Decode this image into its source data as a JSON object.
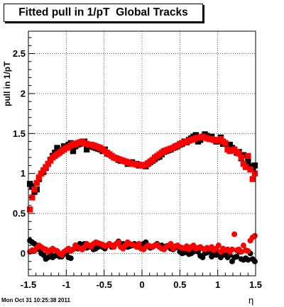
{
  "chart_data": {
    "type": "scatter",
    "title": "Fitted pull in 1/pT  Global Tracks",
    "xlabel": "η",
    "ylabel": "pull in 1/pT",
    "xlim": [
      -1.5,
      1.5
    ],
    "ylim": [
      -0.28,
      2.78
    ],
    "grid": true,
    "xticks": [
      -1.5,
      -1,
      -0.5,
      0,
      0.5,
      1,
      1.5
    ],
    "xtick_labels": [
      "-1.5",
      "-1",
      "-0.5",
      "0",
      "0.5",
      "1",
      "1.5"
    ],
    "yticks": [
      0,
      0.5,
      1,
      1.5,
      2,
      2.5
    ],
    "ytick_labels": [
      "0",
      "0.5",
      "1",
      "1.5",
      "2",
      "2.5"
    ],
    "datestamp": "Mon Oct 31 10:25:38 2011",
    "series": [
      {
        "color": "#000000",
        "marker": "square",
        "x": [
          -1.48,
          -1.45,
          -1.42,
          -1.39,
          -1.36,
          -1.33,
          -1.3,
          -1.27,
          -1.24,
          -1.21,
          -1.18,
          -1.15,
          -1.12,
          -1.09,
          -1.06,
          -1.03,
          -1.0,
          -0.97,
          -0.94,
          -0.91,
          -0.88,
          -0.85,
          -0.82,
          -0.79,
          -0.76,
          -0.73,
          -0.7,
          -0.67,
          -0.64,
          -0.61,
          -0.58,
          -0.55,
          -0.52,
          -0.49,
          -0.46,
          -0.43,
          -0.4,
          -0.37,
          -0.34,
          -0.31,
          -0.28,
          -0.25,
          -0.22,
          -0.19,
          -0.16,
          -0.13,
          -0.1,
          -0.07,
          -0.04,
          -0.01,
          0.02,
          0.05,
          0.08,
          0.11,
          0.14,
          0.17,
          0.2,
          0.23,
          0.26,
          0.29,
          0.32,
          0.35,
          0.38,
          0.41,
          0.44,
          0.47,
          0.5,
          0.53,
          0.56,
          0.59,
          0.62,
          0.65,
          0.68,
          0.71,
          0.74,
          0.77,
          0.8,
          0.83,
          0.86,
          0.89,
          0.92,
          0.95,
          0.98,
          1.01,
          1.04,
          1.07,
          1.1,
          1.13,
          1.16,
          1.19,
          1.22,
          1.25,
          1.28,
          1.31,
          1.34,
          1.37,
          1.4,
          1.43,
          1.46,
          1.49
        ],
        "y": [
          0.87,
          0.84,
          0.77,
          0.8,
          0.93,
          1.0,
          1.02,
          1.07,
          1.12,
          1.17,
          1.22,
          1.26,
          1.32,
          1.29,
          1.29,
          1.34,
          1.32,
          1.36,
          1.38,
          1.28,
          1.34,
          1.36,
          1.37,
          1.38,
          1.4,
          1.3,
          1.35,
          1.34,
          1.33,
          1.32,
          1.31,
          1.3,
          1.28,
          1.3,
          1.25,
          1.24,
          1.22,
          1.2,
          1.19,
          1.17,
          1.16,
          1.16,
          1.15,
          1.12,
          1.14,
          1.14,
          1.12,
          1.12,
          1.1,
          1.1,
          1.1,
          1.09,
          1.12,
          1.14,
          1.16,
          1.18,
          1.2,
          1.21,
          1.24,
          1.27,
          1.28,
          1.29,
          1.3,
          1.32,
          1.33,
          1.34,
          1.36,
          1.37,
          1.4,
          1.39,
          1.42,
          1.44,
          1.46,
          1.48,
          1.4,
          1.42,
          1.45,
          1.49,
          1.47,
          1.44,
          1.46,
          1.42,
          1.4,
          1.4,
          1.45,
          1.37,
          1.38,
          1.36,
          1.36,
          1.32,
          1.3,
          1.26,
          1.27,
          1.19,
          1.23,
          1.1,
          1.15,
          1.09,
          1.05,
          1.1
        ]
      },
      {
        "color": "#ff0000",
        "marker": "square",
        "x": [
          -1.48,
          -1.45,
          -1.42,
          -1.39,
          -1.36,
          -1.33,
          -1.3,
          -1.27,
          -1.24,
          -1.21,
          -1.18,
          -1.15,
          -1.12,
          -1.09,
          -1.06,
          -1.03,
          -1.0,
          -0.97,
          -0.94,
          -0.91,
          -0.88,
          -0.85,
          -0.82,
          -0.79,
          -0.76,
          -0.73,
          -0.7,
          -0.67,
          -0.64,
          -0.61,
          -0.58,
          -0.55,
          -0.52,
          -0.49,
          -0.46,
          -0.43,
          -0.4,
          -0.37,
          -0.34,
          -0.31,
          -0.28,
          -0.25,
          -0.22,
          -0.19,
          -0.16,
          -0.13,
          -0.1,
          -0.07,
          -0.04,
          -0.01,
          0.02,
          0.05,
          0.08,
          0.11,
          0.14,
          0.17,
          0.2,
          0.23,
          0.26,
          0.29,
          0.32,
          0.35,
          0.38,
          0.41,
          0.44,
          0.47,
          0.5,
          0.53,
          0.56,
          0.59,
          0.62,
          0.65,
          0.68,
          0.71,
          0.74,
          0.77,
          0.8,
          0.83,
          0.86,
          0.89,
          0.92,
          0.95,
          0.98,
          1.01,
          1.04,
          1.07,
          1.1,
          1.13,
          1.16,
          1.19,
          1.22,
          1.25,
          1.28,
          1.31,
          1.34,
          1.37,
          1.4,
          1.43,
          1.46,
          1.49
        ],
        "y": [
          0.55,
          0.7,
          0.8,
          0.88,
          0.95,
          1.0,
          1.04,
          1.08,
          1.12,
          1.16,
          1.2,
          1.22,
          1.24,
          1.26,
          1.28,
          1.3,
          1.32,
          1.33,
          1.35,
          1.37,
          1.36,
          1.38,
          1.39,
          1.4,
          1.38,
          1.37,
          1.36,
          1.36,
          1.35,
          1.34,
          1.33,
          1.32,
          1.3,
          1.28,
          1.26,
          1.24,
          1.22,
          1.2,
          1.19,
          1.18,
          1.17,
          1.16,
          1.15,
          1.14,
          1.13,
          1.12,
          1.12,
          1.11,
          1.11,
          1.1,
          1.1,
          1.11,
          1.13,
          1.15,
          1.17,
          1.2,
          1.22,
          1.24,
          1.26,
          1.28,
          1.29,
          1.3,
          1.31,
          1.32,
          1.34,
          1.35,
          1.37,
          1.38,
          1.39,
          1.4,
          1.41,
          1.42,
          1.43,
          1.44,
          1.45,
          1.45,
          1.46,
          1.45,
          1.44,
          1.43,
          1.43,
          1.42,
          1.41,
          1.42,
          1.43,
          1.4,
          1.38,
          1.3,
          1.28,
          1.29,
          1.3,
          1.27,
          1.25,
          1.2,
          1.12,
          1.08,
          1.22,
          1.05,
          0.93,
          1.0
        ]
      },
      {
        "color": "#000000",
        "marker": "circle",
        "x": [
          -1.48,
          -1.45,
          -1.42,
          -1.39,
          -1.36,
          -1.33,
          -1.3,
          -1.27,
          -1.24,
          -1.21,
          -1.18,
          -1.15,
          -1.12,
          -1.09,
          -1.06,
          -1.03,
          -1.0,
          -0.97,
          -0.94,
          -0.91,
          -0.88,
          -0.85,
          -0.82,
          -0.79,
          -0.76,
          -0.73,
          -0.7,
          -0.67,
          -0.64,
          -0.61,
          -0.58,
          -0.55,
          -0.52,
          -0.49,
          -0.46,
          -0.43,
          -0.4,
          -0.37,
          -0.34,
          -0.31,
          -0.28,
          -0.25,
          -0.22,
          -0.19,
          -0.16,
          -0.13,
          -0.1,
          -0.07,
          -0.04,
          -0.01,
          0.02,
          0.05,
          0.08,
          0.11,
          0.14,
          0.17,
          0.2,
          0.23,
          0.26,
          0.29,
          0.32,
          0.35,
          0.38,
          0.41,
          0.44,
          0.47,
          0.5,
          0.53,
          0.56,
          0.59,
          0.62,
          0.65,
          0.68,
          0.71,
          0.74,
          0.77,
          0.8,
          0.83,
          0.86,
          0.89,
          0.92,
          0.95,
          0.98,
          1.01,
          1.04,
          1.07,
          1.1,
          1.13,
          1.16,
          1.19,
          1.22,
          1.25,
          1.28,
          1.31,
          1.34,
          1.37,
          1.4,
          1.43,
          1.46,
          1.49
        ],
        "y": [
          0.16,
          0.14,
          0.12,
          0.1,
          0.05,
          0.0,
          -0.02,
          -0.07,
          -0.05,
          0.01,
          -0.05,
          -0.03,
          -0.02,
          -0.04,
          -0.04,
          -0.01,
          0.0,
          -0.05,
          -0.06,
          0.05,
          0.1,
          0.06,
          0.12,
          0.05,
          0.12,
          0.07,
          0.08,
          0.1,
          0.05,
          0.06,
          0.08,
          0.1,
          0.08,
          0.06,
          0.1,
          0.12,
          0.08,
          0.1,
          0.12,
          0.15,
          0.1,
          0.12,
          0.11,
          0.08,
          0.09,
          0.1,
          0.12,
          0.1,
          0.08,
          0.06,
          0.12,
          0.14,
          0.1,
          0.07,
          0.08,
          0.1,
          0.12,
          0.08,
          0.1,
          0.07,
          0.09,
          0.08,
          0.06,
          0.05,
          0.07,
          0.08,
          0.02,
          0.0,
          0.01,
          0.02,
          -0.01,
          0.0,
          0.02,
          0.05,
          0.02,
          -0.03,
          -0.05,
          0.0,
          0.01,
          0.02,
          -0.04,
          0.0,
          -0.02,
          0.01,
          -0.05,
          -0.02,
          0.0,
          -0.05,
          -0.02,
          -0.1,
          -0.05,
          -0.04,
          0.02,
          -0.07,
          -0.08,
          -0.06,
          -0.08,
          0.0,
          -0.07,
          -0.1
        ]
      },
      {
        "color": "#ff0000",
        "marker": "circle",
        "x": [
          -1.48,
          -1.45,
          -1.42,
          -1.39,
          -1.36,
          -1.33,
          -1.3,
          -1.27,
          -1.24,
          -1.21,
          -1.18,
          -1.15,
          -1.12,
          -1.09,
          -1.06,
          -1.03,
          -1.0,
          -0.97,
          -0.94,
          -0.91,
          -0.88,
          -0.85,
          -0.82,
          -0.79,
          -0.76,
          -0.73,
          -0.7,
          -0.67,
          -0.64,
          -0.61,
          -0.58,
          -0.55,
          -0.52,
          -0.49,
          -0.46,
          -0.43,
          -0.4,
          -0.37,
          -0.34,
          -0.31,
          -0.28,
          -0.25,
          -0.22,
          -0.19,
          -0.16,
          -0.13,
          -0.1,
          -0.07,
          -0.04,
          -0.01,
          0.02,
          0.05,
          0.08,
          0.11,
          0.14,
          0.17,
          0.2,
          0.23,
          0.26,
          0.29,
          0.32,
          0.35,
          0.38,
          0.41,
          0.44,
          0.47,
          0.5,
          0.53,
          0.56,
          0.59,
          0.62,
          0.65,
          0.68,
          0.71,
          0.74,
          0.77,
          0.8,
          0.83,
          0.86,
          0.89,
          0.92,
          0.95,
          0.98,
          1.01,
          1.04,
          1.07,
          1.1,
          1.13,
          1.16,
          1.19,
          1.22,
          1.25,
          1.28,
          1.31,
          1.34,
          1.37,
          1.4,
          1.43,
          1.46,
          1.49
        ],
        "y": [
          0.02,
          0.04,
          0.03,
          0.07,
          0.1,
          0.08,
          0.06,
          0.05,
          0.02,
          0.04,
          0.06,
          0.04,
          0.03,
          0.0,
          -0.02,
          0.02,
          0.04,
          0.06,
          0.03,
          0.05,
          0.1,
          0.08,
          0.06,
          0.05,
          0.08,
          0.12,
          0.1,
          0.08,
          0.12,
          0.14,
          0.13,
          0.12,
          0.11,
          0.09,
          0.1,
          0.12,
          0.1,
          0.08,
          0.12,
          0.14,
          0.08,
          0.06,
          0.1,
          0.14,
          0.12,
          0.11,
          0.1,
          0.08,
          0.12,
          0.06,
          0.05,
          0.08,
          0.1,
          0.09,
          0.08,
          0.1,
          0.11,
          0.08,
          0.06,
          0.05,
          0.08,
          0.1,
          0.12,
          0.06,
          0.09,
          0.1,
          0.08,
          0.07,
          0.06,
          0.09,
          0.05,
          0.08,
          0.1,
          0.06,
          0.07,
          0.08,
          0.06,
          0.05,
          0.07,
          0.06,
          0.08,
          0.04,
          0.06,
          0.1,
          0.02,
          0.06,
          0.04,
          0.05,
          0.02,
          0.05,
          0.24,
          0.04,
          0.05,
          0.02,
          0.1,
          0.04,
          0.03,
          0.16,
          0.2,
          0.22
        ]
      }
    ]
  }
}
